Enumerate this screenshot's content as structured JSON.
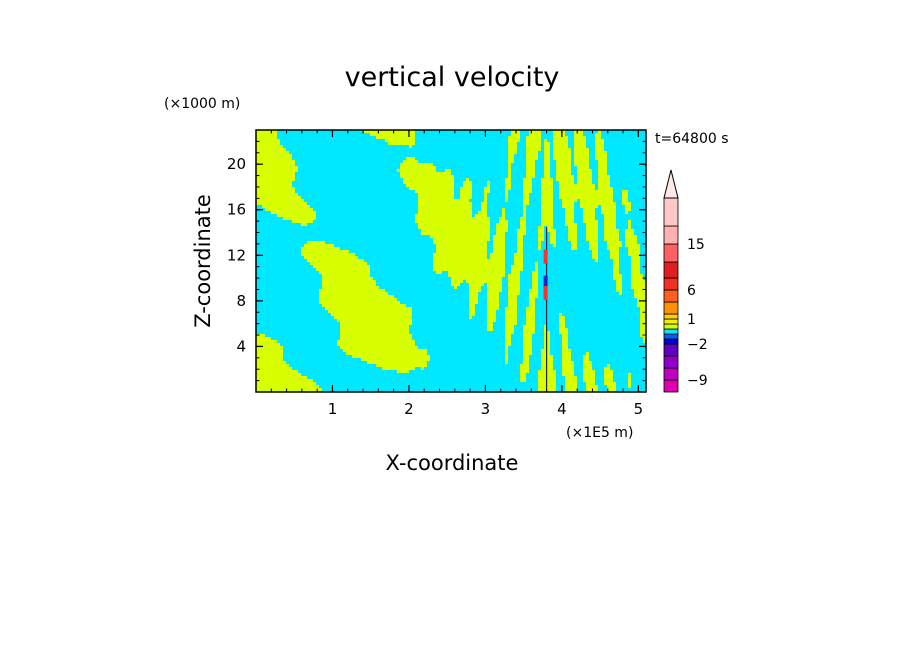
{
  "chart_data": {
    "type": "heatmap",
    "title": "vertical velocity",
    "xlabel": "X-coordinate",
    "ylabel": "Z-coordinate",
    "x_unit": "(×1E5 m)",
    "y_unit": "(×1000 m)",
    "time_label": "t=64800 s",
    "xlim": [
      0,
      5.1
    ],
    "ylim": [
      0,
      23
    ],
    "x_ticks": [
      1,
      2,
      3,
      4,
      5
    ],
    "y_ticks": [
      4,
      8,
      12,
      16,
      20
    ],
    "colorbar": {
      "levels": [
        -12,
        -9,
        -6,
        -4,
        -2,
        -1,
        -0.5,
        0,
        0.5,
        1,
        2,
        4,
        6,
        9,
        12,
        15,
        20,
        25
      ],
      "tick_labels": [
        "15",
        "6",
        "1",
        "−2",
        "−9"
      ],
      "tick_values": [
        15,
        6,
        1,
        -2,
        -9
      ],
      "colors": [
        "#e000b0",
        "#c000c0",
        "#9000c8",
        "#6000c0",
        "#0000d0",
        "#0060ff",
        "#00e8ff",
        "#d8ff00",
        "#f0f000",
        "#ffd000",
        "#ff9000",
        "#ff6020",
        "#f03020",
        "#e02020",
        "#ff6060",
        "#ffb0b0",
        "#ffc8c8"
      ],
      "extend": "max"
    },
    "field_colors": {
      "positive": "#d8ff00",
      "negative": "#00e8ff",
      "updraft_core": "#ff3030",
      "downdraft_core": "#2020d0"
    },
    "shear_line_x": 3.8
  }
}
